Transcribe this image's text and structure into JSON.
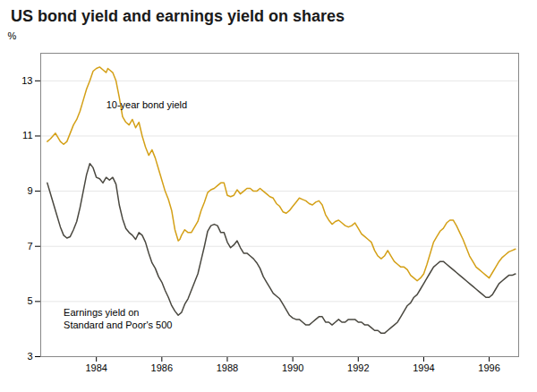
{
  "chart_data": {
    "type": "line",
    "title": "US bond yield and earnings yield on shares",
    "ylabel": "%",
    "xlim": [
      1982.3,
      1996.9
    ],
    "xticks": [
      1984,
      1986,
      1988,
      1990,
      1992,
      1994,
      1996
    ],
    "ylim": [
      3,
      14
    ],
    "yticks": [
      3,
      5,
      7,
      9,
      11,
      13
    ],
    "grid": true,
    "series": [
      {
        "color": "#d4a017",
        "x": [
          1982.5,
          1982.6,
          1982.75,
          1982.9,
          1983.0,
          1983.1,
          1983.2,
          1983.3,
          1983.4,
          1983.5,
          1983.6,
          1983.7,
          1983.8,
          1983.9,
          1984.0,
          1984.1,
          1984.2,
          1984.3,
          1984.35,
          1984.4,
          1984.5,
          1984.6,
          1984.7,
          1984.8,
          1984.9,
          1985.0,
          1985.1,
          1985.2,
          1985.3,
          1985.4,
          1985.5,
          1985.6,
          1985.7,
          1985.8,
          1985.9,
          1986.0,
          1986.1,
          1986.2,
          1986.3,
          1986.4,
          1986.5,
          1986.55,
          1986.6,
          1986.7,
          1986.8,
          1986.9,
          1987.0,
          1987.1,
          1987.2,
          1987.3,
          1987.4,
          1987.5,
          1987.6,
          1987.7,
          1987.8,
          1987.9,
          1988.0,
          1988.1,
          1988.2,
          1988.3,
          1988.4,
          1988.5,
          1988.6,
          1988.7,
          1988.8,
          1988.9,
          1989.0,
          1989.1,
          1989.2,
          1989.3,
          1989.4,
          1989.5,
          1989.6,
          1989.7,
          1989.8,
          1989.9,
          1990.0,
          1990.1,
          1990.2,
          1990.3,
          1990.4,
          1990.5,
          1990.6,
          1990.7,
          1990.8,
          1990.9,
          1991.0,
          1991.1,
          1991.2,
          1991.3,
          1991.4,
          1991.5,
          1991.6,
          1991.7,
          1991.8,
          1991.9,
          1992.0,
          1992.1,
          1992.2,
          1992.3,
          1992.4,
          1992.5,
          1992.6,
          1992.7,
          1992.8,
          1992.9,
          1993.0,
          1993.1,
          1993.2,
          1993.3,
          1993.4,
          1993.5,
          1993.6,
          1993.7,
          1993.8,
          1993.9,
          1994.0,
          1994.1,
          1994.2,
          1994.3,
          1994.4,
          1994.5,
          1994.6,
          1994.7,
          1994.8,
          1994.9,
          1995.0,
          1995.1,
          1995.2,
          1995.3,
          1995.4,
          1995.5,
          1995.6,
          1995.7,
          1995.8,
          1995.9,
          1996.0,
          1996.1,
          1996.2,
          1996.3,
          1996.4,
          1996.5,
          1996.6,
          1996.7,
          1996.8
        ],
        "values": [
          10.8,
          10.9,
          11.1,
          10.8,
          10.7,
          10.8,
          11.1,
          11.4,
          11.6,
          11.9,
          12.3,
          12.7,
          13.0,
          13.35,
          13.45,
          13.5,
          13.4,
          13.3,
          13.45,
          13.4,
          13.3,
          13.0,
          12.4,
          11.7,
          11.5,
          11.4,
          11.6,
          11.3,
          11.5,
          11.0,
          10.6,
          10.3,
          10.5,
          10.2,
          9.8,
          9.4,
          9.0,
          8.7,
          8.3,
          7.6,
          7.2,
          7.25,
          7.4,
          7.6,
          7.5,
          7.5,
          7.7,
          7.9,
          8.3,
          8.6,
          8.95,
          9.05,
          9.1,
          9.2,
          9.3,
          9.3,
          8.85,
          8.8,
          8.85,
          9.05,
          8.9,
          9.0,
          9.1,
          9.1,
          9.0,
          9.0,
          9.1,
          9.0,
          8.9,
          8.8,
          8.75,
          8.55,
          8.45,
          8.25,
          8.2,
          8.3,
          8.45,
          8.6,
          8.75,
          8.7,
          8.65,
          8.55,
          8.5,
          8.6,
          8.65,
          8.5,
          8.15,
          7.95,
          7.8,
          7.9,
          7.95,
          7.85,
          7.75,
          7.7,
          7.75,
          7.85,
          7.65,
          7.45,
          7.35,
          7.25,
          7.15,
          6.85,
          6.65,
          6.55,
          6.65,
          6.85,
          6.65,
          6.45,
          6.35,
          6.25,
          6.25,
          6.15,
          5.95,
          5.85,
          5.75,
          5.85,
          6.0,
          6.35,
          6.75,
          7.15,
          7.35,
          7.55,
          7.65,
          7.85,
          7.95,
          7.95,
          7.75,
          7.5,
          7.25,
          6.95,
          6.65,
          6.45,
          6.25,
          6.15,
          6.05,
          5.95,
          5.85,
          6.05,
          6.25,
          6.45,
          6.6,
          6.7,
          6.8,
          6.85,
          6.9
        ]
      },
      {
        "color": "#4a4840",
        "x": [
          1982.5,
          1982.6,
          1982.75,
          1982.9,
          1983.0,
          1983.1,
          1983.2,
          1983.3,
          1983.4,
          1983.5,
          1983.6,
          1983.7,
          1983.8,
          1983.9,
          1984.0,
          1984.1,
          1984.2,
          1984.3,
          1984.4,
          1984.5,
          1984.6,
          1984.7,
          1984.8,
          1984.9,
          1985.0,
          1985.1,
          1985.2,
          1985.3,
          1985.4,
          1985.5,
          1985.6,
          1985.7,
          1985.8,
          1985.9,
          1986.0,
          1986.1,
          1986.2,
          1986.3,
          1986.4,
          1986.5,
          1986.6,
          1986.7,
          1986.8,
          1986.9,
          1987.0,
          1987.1,
          1987.2,
          1987.3,
          1987.4,
          1987.5,
          1987.6,
          1987.7,
          1987.8,
          1987.9,
          1988.0,
          1988.1,
          1988.2,
          1988.3,
          1988.4,
          1988.5,
          1988.6,
          1988.7,
          1988.8,
          1988.9,
          1989.0,
          1989.1,
          1989.2,
          1989.3,
          1989.4,
          1989.5,
          1989.6,
          1989.7,
          1989.8,
          1989.9,
          1990.0,
          1990.1,
          1990.2,
          1990.3,
          1990.4,
          1990.5,
          1990.6,
          1990.7,
          1990.8,
          1990.9,
          1991.0,
          1991.1,
          1991.2,
          1991.3,
          1991.4,
          1991.5,
          1991.6,
          1991.7,
          1991.8,
          1991.9,
          1992.0,
          1992.1,
          1992.2,
          1992.3,
          1992.4,
          1992.5,
          1992.6,
          1992.7,
          1992.8,
          1992.9,
          1993.0,
          1993.1,
          1993.2,
          1993.3,
          1993.4,
          1993.5,
          1993.6,
          1993.7,
          1993.8,
          1993.9,
          1994.0,
          1994.1,
          1994.2,
          1994.3,
          1994.4,
          1994.5,
          1994.6,
          1994.7,
          1994.8,
          1994.9,
          1995.0,
          1995.1,
          1995.2,
          1995.3,
          1995.4,
          1995.5,
          1995.6,
          1995.7,
          1995.8,
          1995.9,
          1996.0,
          1996.1,
          1996.2,
          1996.3,
          1996.4,
          1996.5,
          1996.6,
          1996.7,
          1996.8
        ],
        "values": [
          9.3,
          8.9,
          8.3,
          7.7,
          7.4,
          7.3,
          7.35,
          7.6,
          7.9,
          8.4,
          9.0,
          9.6,
          10.0,
          9.85,
          9.5,
          9.45,
          9.3,
          9.5,
          9.4,
          9.5,
          9.25,
          8.5,
          8.0,
          7.65,
          7.5,
          7.4,
          7.25,
          7.5,
          7.4,
          7.15,
          6.75,
          6.4,
          6.2,
          5.9,
          5.7,
          5.4,
          5.15,
          4.85,
          4.65,
          4.5,
          4.6,
          4.9,
          5.1,
          5.4,
          5.7,
          6.0,
          6.5,
          7.0,
          7.55,
          7.75,
          7.8,
          7.75,
          7.5,
          7.5,
          7.15,
          6.95,
          7.05,
          7.2,
          6.95,
          6.75,
          6.75,
          6.65,
          6.55,
          6.4,
          6.2,
          5.9,
          5.7,
          5.5,
          5.3,
          5.2,
          5.1,
          4.9,
          4.7,
          4.5,
          4.4,
          4.35,
          4.35,
          4.25,
          4.15,
          4.15,
          4.25,
          4.35,
          4.45,
          4.45,
          4.25,
          4.25,
          4.15,
          4.25,
          4.35,
          4.25,
          4.25,
          4.35,
          4.35,
          4.35,
          4.25,
          4.25,
          4.15,
          4.15,
          4.05,
          3.95,
          3.95,
          3.85,
          3.85,
          3.95,
          4.05,
          4.15,
          4.25,
          4.45,
          4.65,
          4.85,
          4.95,
          5.15,
          5.25,
          5.45,
          5.65,
          5.85,
          6.05,
          6.25,
          6.35,
          6.45,
          6.45,
          6.35,
          6.25,
          6.15,
          6.05,
          5.95,
          5.85,
          5.75,
          5.65,
          5.55,
          5.45,
          5.35,
          5.25,
          5.15,
          5.15,
          5.25,
          5.45,
          5.65,
          5.75,
          5.85,
          5.95,
          5.95,
          6.0
        ]
      }
    ],
    "annotations": [
      {
        "text": "10-year bond yield",
        "x": 1984.3,
        "y": 12.0
      },
      {
        "text": "Earnings yield on\nStandard and Poor's 500",
        "x": 1983.0,
        "y": 4.8
      }
    ]
  }
}
